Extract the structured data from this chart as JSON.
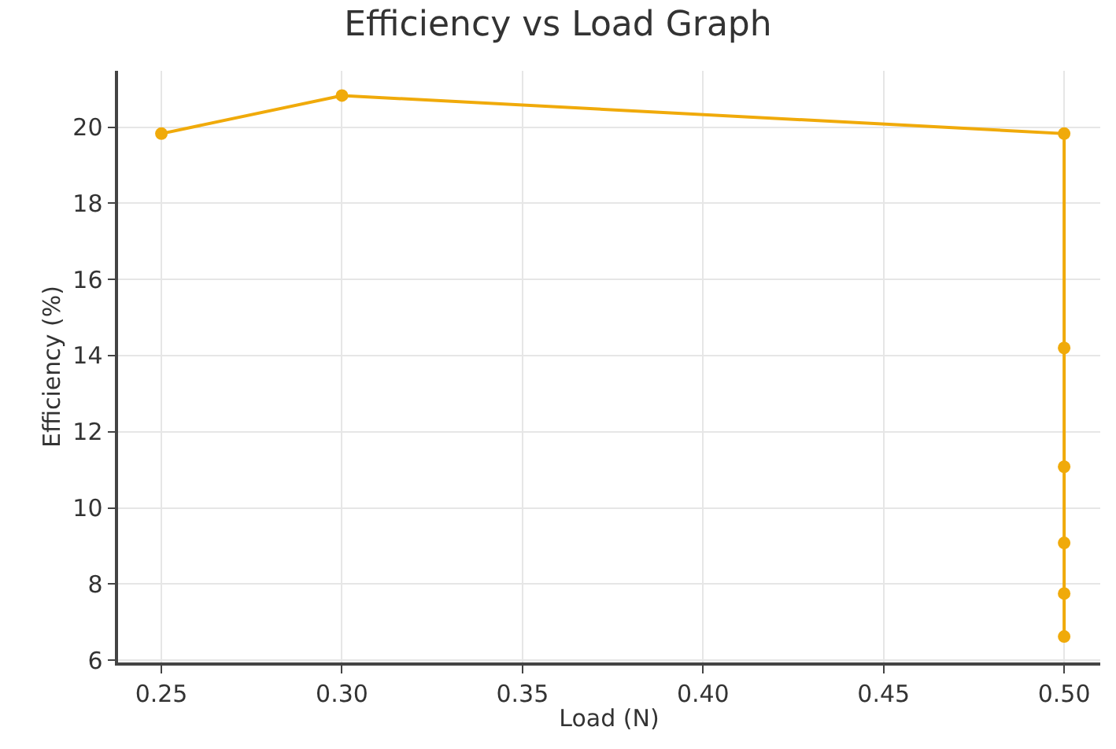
{
  "chart_data": {
    "type": "line",
    "title": "Efficiency vs Load Graph",
    "xlabel": "Load (N)",
    "ylabel": "Efficiency (%)",
    "x": [
      0.25,
      0.3,
      0.5,
      0.5,
      0.5,
      0.5,
      0.5,
      0.5
    ],
    "series": [
      {
        "color": "#f0aa0a",
        "values": [
          19.83,
          20.83,
          19.83,
          14.2,
          11.08,
          9.08,
          7.75,
          6.62
        ]
      }
    ],
    "xlim": [
      0.238,
      0.51
    ],
    "xticks": [
      {
        "value": 0.25,
        "label": "0.25"
      },
      {
        "value": 0.3,
        "label": "0.30"
      },
      {
        "value": 0.35,
        "label": "0.35"
      },
      {
        "value": 0.4,
        "label": "0.40"
      },
      {
        "value": 0.45,
        "label": "0.45"
      },
      {
        "value": 0.5,
        "label": "0.50"
      }
    ],
    "ylim": [
      5.94,
      21.48
    ],
    "yticks": [
      6,
      8,
      10,
      12,
      14,
      16,
      18,
      20
    ],
    "grid": true,
    "marker": "circle",
    "line_style": "solid"
  }
}
